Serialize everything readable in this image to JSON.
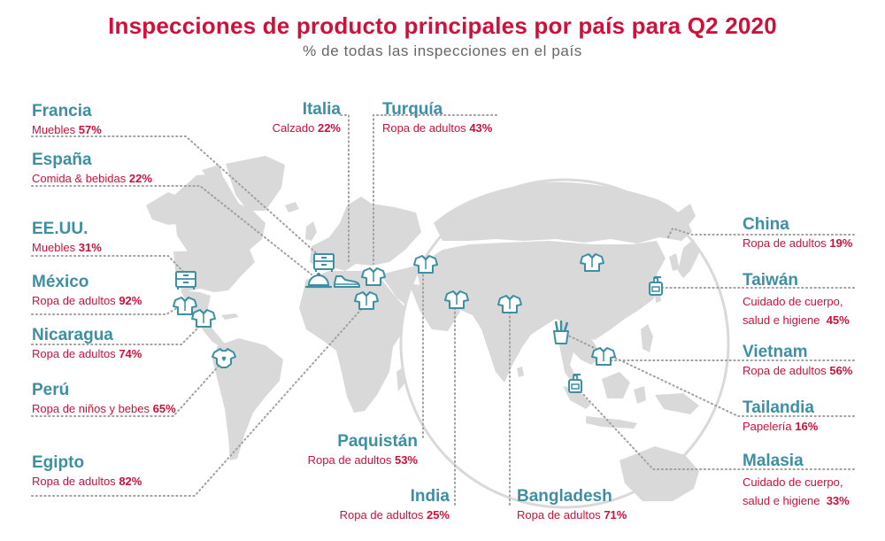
{
  "header": {
    "title": "Inspecciones de producto principales por país para Q2 2020",
    "subtitle": "% de todas las inspecciones en el país"
  },
  "colors": {
    "accent": "#d0103a",
    "country": "#3d8fa3",
    "icon": "#3d8fa3",
    "land": "#d9d9d9",
    "connector": "#a0a0a0"
  },
  "labels": {
    "francia": {
      "country": "Francia",
      "category": "Muebles",
      "pct": "57%"
    },
    "espana": {
      "country": "España",
      "category": "Comida & bebidas",
      "pct": "22%"
    },
    "eeuu": {
      "country": "EE.UU.",
      "category": "Muebles",
      "pct": "31%"
    },
    "mexico": {
      "country": "México",
      "category": "Ropa de adultos",
      "pct": "92%"
    },
    "nicaragua": {
      "country": "Nicaragua",
      "category": "Ropa de adultos",
      "pct": "74%"
    },
    "peru": {
      "country": "Perú",
      "category": "Ropa de niños y bebes",
      "pct": "65%"
    },
    "egipto": {
      "country": "Egipto",
      "category": "Ropa de adultos",
      "pct": "82%"
    },
    "italia": {
      "country": "Italia",
      "category": "Calzado",
      "pct": "22%"
    },
    "turquia": {
      "country": "Turquía",
      "category": "Ropa de adultos",
      "pct": "43%"
    },
    "paquistan": {
      "country": "Paquistán",
      "category": "Ropa de adultos",
      "pct": "53%"
    },
    "india": {
      "country": "India",
      "category": "Ropa de adultos",
      "pct": "25%"
    },
    "bangladesh": {
      "country": "Bangladesh",
      "category": "Ropa de adultos",
      "pct": "71%"
    },
    "china": {
      "country": "China",
      "category": "Ropa de adultos",
      "pct": "19%"
    },
    "taiwan": {
      "country": "Taiwán",
      "category_line1": "Cuidado de cuerpo,",
      "category_line2": "salud e higiene",
      "pct": "45%"
    },
    "vietnam": {
      "country": "Vietnam",
      "category": "Ropa de adultos",
      "pct": "56%"
    },
    "tailandia": {
      "country": "Tailandia",
      "category": "Papelería",
      "pct": "16%"
    },
    "malasia": {
      "country": "Malasia",
      "category_line1": "Cuidado de cuerpo,",
      "category_line2": "salud e higiene",
      "pct": "33%"
    }
  },
  "icons": [
    {
      "country": "eeuu",
      "name": "dresser-icon"
    },
    {
      "country": "mexico",
      "name": "shirt-icon"
    },
    {
      "country": "nicaragua",
      "name": "shirt-icon"
    },
    {
      "country": "peru",
      "name": "baby-onesie-icon"
    },
    {
      "country": "francia",
      "name": "dresser-icon"
    },
    {
      "country": "espana",
      "name": "food-cloche-icon"
    },
    {
      "country": "italia",
      "name": "shoe-icon"
    },
    {
      "country": "turquia",
      "name": "shirt-icon"
    },
    {
      "country": "egipto",
      "name": "shirt-icon"
    },
    {
      "country": "paquistan",
      "name": "shirt-icon"
    },
    {
      "country": "india",
      "name": "shirt-icon"
    },
    {
      "country": "bangladesh",
      "name": "shirt-icon"
    },
    {
      "country": "china",
      "name": "shirt-icon"
    },
    {
      "country": "taiwan",
      "name": "soap-bottle-icon"
    },
    {
      "country": "vietnam",
      "name": "shirt-icon"
    },
    {
      "country": "tailandia",
      "name": "pencil-cup-icon"
    },
    {
      "country": "malasia",
      "name": "soap-bottle-icon"
    }
  ]
}
